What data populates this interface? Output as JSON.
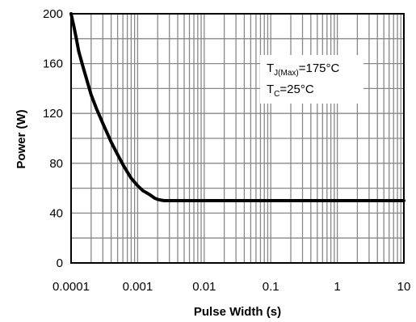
{
  "chart_data": {
    "type": "line",
    "xlabel": "Pulse Width (s)",
    "ylabel": "Power (W)",
    "xscale": "log",
    "xlim": [
      0.0001,
      10
    ],
    "ylim": [
      0,
      200
    ],
    "x_ticks": [
      "0.0001",
      "0.001",
      "0.01",
      "0.1",
      "1",
      "10"
    ],
    "y_ticks": [
      "0",
      "40",
      "80",
      "120",
      "160",
      "200"
    ],
    "grid": true,
    "annotation": {
      "line1_main": "T",
      "line1_sub": "J(Max)",
      "line1_rest": "=175°C",
      "line2_main": "T",
      "line2_sub": "C",
      "line2_rest": "=25°C"
    },
    "series": [
      {
        "x": [
          0.0001,
          0.00011,
          0.00012,
          0.00013,
          0.00015,
          0.00017,
          0.0002,
          0.00024,
          0.0003,
          0.00035,
          0.0004,
          0.0005,
          0.0006,
          0.0007,
          0.0008,
          0.001,
          0.0012,
          0.0015,
          0.0018,
          0.002,
          0.0022,
          0.0025,
          0.003,
          0.004,
          0.005,
          0.01,
          0.1,
          1,
          10
        ],
        "y": [
          200,
          190,
          180,
          170,
          158,
          148,
          135,
          124,
          112,
          104,
          97,
          87,
          79,
          73,
          68,
          62,
          58,
          55,
          52,
          51,
          50.5,
          50,
          50,
          50,
          50,
          50,
          50,
          50,
          50
        ]
      }
    ],
    "colors": {
      "line": "#000000",
      "grid": "#888888",
      "frame": "#000000"
    }
  }
}
